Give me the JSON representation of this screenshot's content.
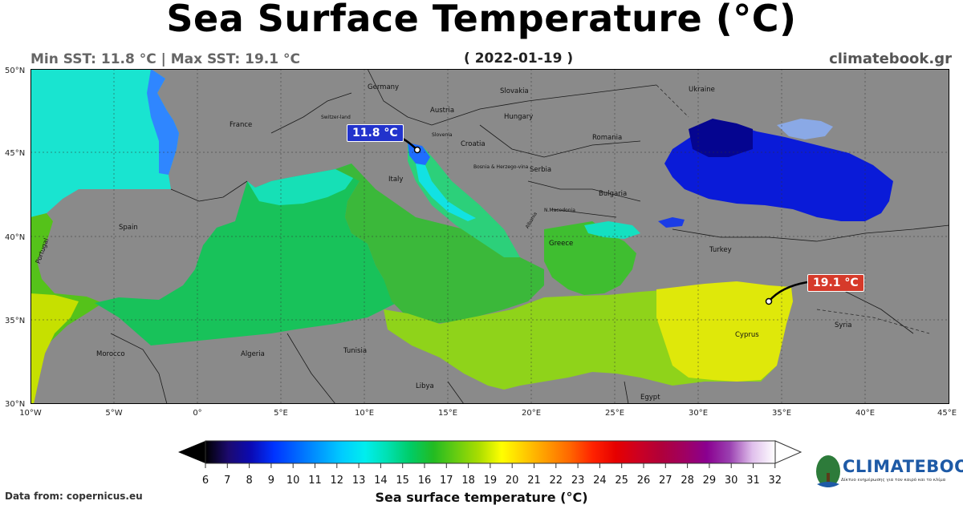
{
  "header": {
    "title": "Sea Surface Temperature (°C)",
    "min_max": "Min SST: 11.8 °C | Max SST: 19.1 °C",
    "date": "( 2022-01-19 )",
    "site": "climatebook.gr"
  },
  "map": {
    "lat_labels": [
      "50°N",
      "45°N",
      "40°N",
      "35°N",
      "30°N"
    ],
    "lon_labels": [
      "10°W",
      "5°W",
      "0°",
      "5°E",
      "10°E",
      "15°E",
      "20°E",
      "25°E",
      "30°E",
      "35°E",
      "40°E",
      "45°E"
    ],
    "country_labels": [
      "Germany",
      "Slovakia",
      "Ukraine",
      "Austria",
      "Hungary",
      "France",
      "Switzer-land",
      "Slovenia",
      "Croatia",
      "Romania",
      "Bosnia & Herzego-vina",
      "Serbia",
      "Italy",
      "Bulgaria",
      "N.Macedonia",
      "Albania",
      "Spain",
      "Portugal",
      "Greece",
      "Turkey",
      "Cyprus",
      "Syria",
      "Morocco",
      "Algeria",
      "Tunisia",
      "Libya",
      "Egypt"
    ],
    "min_marker": {
      "label": "11.8 °C",
      "value": 11.8,
      "lon": 13.2,
      "lat": 45.2,
      "color": "#2233cc"
    },
    "max_marker": {
      "label": "19.1 °C",
      "value": 19.1,
      "lon": 34.2,
      "lat": 36.2,
      "color": "#d63a2a"
    }
  },
  "colorbar": {
    "ticks": [
      "6",
      "7",
      "8",
      "9",
      "10",
      "11",
      "12",
      "13",
      "14",
      "15",
      "16",
      "17",
      "18",
      "19",
      "20",
      "21",
      "22",
      "23",
      "24",
      "25",
      "26",
      "27",
      "28",
      "29",
      "30",
      "31",
      "32"
    ],
    "label": "Sea surface temperature (°C)",
    "colors": [
      "#000000",
      "#1c0a6e",
      "#0a0ab4",
      "#0033ff",
      "#0066ff",
      "#0099ff",
      "#00ccff",
      "#00eeee",
      "#00e0b0",
      "#00cc66",
      "#22bb22",
      "#66cc11",
      "#aadd00",
      "#ffff00",
      "#ffcc00",
      "#ff9900",
      "#ff6600",
      "#ff2200",
      "#e60000",
      "#cc0022",
      "#b0003a",
      "#a00060",
      "#8a0090",
      "#9a40b0",
      "#c080d0",
      "#e0c0ec",
      "#ffffff"
    ]
  },
  "footer": {
    "data_from": "Data from: copernicus.eu",
    "logo_name": "CLIMATEBOOK",
    "logo_tagline": "Δίκτυο ενημέρωσης για τον καιρό και το κλίμα"
  }
}
